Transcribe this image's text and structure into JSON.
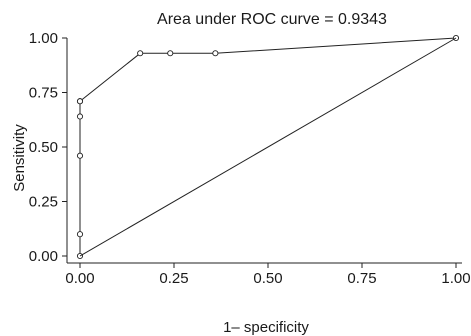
{
  "chart_data": {
    "type": "line",
    "title": "Area under ROC curve = 0.9343",
    "xlabel": "1– specificity",
    "ylabel": "Sensitivity",
    "xlim": [
      0,
      1
    ],
    "ylim": [
      0,
      1
    ],
    "x_ticks": [
      "0.00",
      "0.25",
      "0.50",
      "0.75",
      "1.00"
    ],
    "y_ticks": [
      "0.00",
      "0.25",
      "0.50",
      "0.75",
      "1.00"
    ],
    "grid": false,
    "series": [
      {
        "x": [
          0.0,
          0.0,
          0.0,
          0.0,
          0.0,
          0.0,
          0.16,
          0.24,
          0.36,
          1.0
        ],
        "y": [
          0.0,
          0.1,
          0.46,
          0.64,
          0.71,
          0.71,
          0.93,
          0.93,
          0.93,
          1.0
        ],
        "markers": true
      },
      {
        "x": [
          0.0,
          1.0
        ],
        "y": [
          0.0,
          1.0
        ],
        "markers": false
      }
    ],
    "colors": {
      "line": "#222222",
      "marker_fill": "#ffffff"
    }
  }
}
